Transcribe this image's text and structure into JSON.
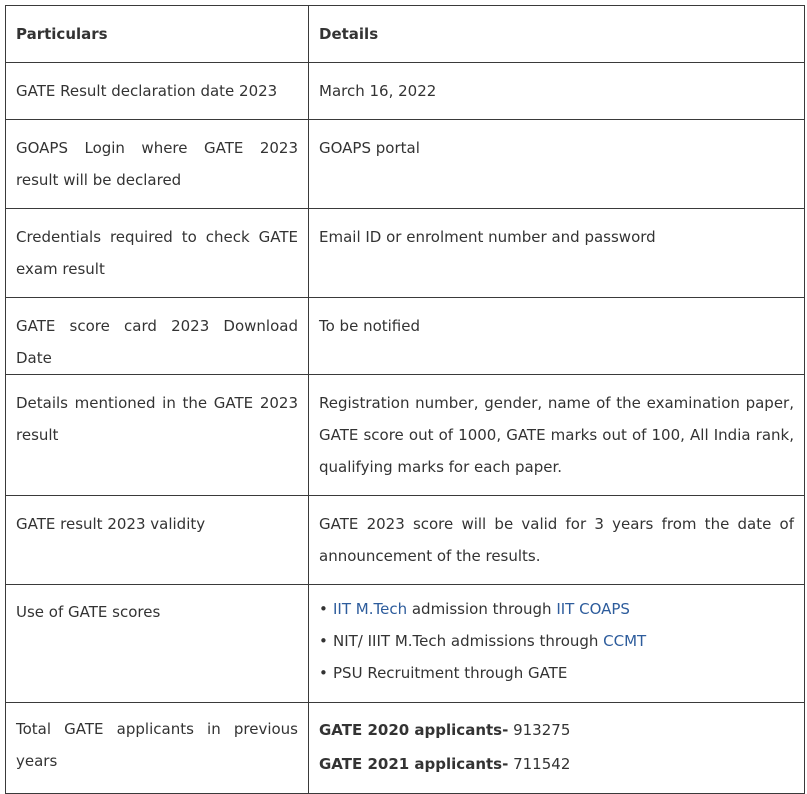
{
  "table": {
    "headers": [
      "Particulars",
      "Details"
    ],
    "rows": [
      {
        "particular": "GATE Result declaration date 2023",
        "detail": "March 16, 2022"
      },
      {
        "particular": "GOAPS Login where GATE 2023 result will be declared",
        "detail": "GOAPS portal"
      },
      {
        "particular": "Credentials required to check GATE exam result",
        "detail": "Email ID or enrolment number and password"
      },
      {
        "particular": "GATE score card 2023 Download Date",
        "detail": "To be notified"
      },
      {
        "particular": "Details mentioned in the GATE 2023 result",
        "detail": "Registration number, gender, name of the examination paper, GATE score out of 1000, GATE marks out of 100, All India rank, qualifying marks for each paper."
      },
      {
        "particular": "GATE result 2023 validity",
        "detail": "GATE 2023 score will be valid for 3 years from the date of announcement of the results."
      },
      {
        "particular": "Use of GATE scores",
        "bullets": [
          {
            "link1": "IIT M.Tech",
            "text": " admission through ",
            "link2": "IIT COAPS"
          },
          {
            "text": "NIT/ IIIT M.Tech admissions through ",
            "link2": "CCMT"
          },
          {
            "text": "PSU Recruitment through GATE"
          }
        ]
      },
      {
        "particular": "Total GATE applicants in previous years",
        "applicants": [
          {
            "label": "GATE 2020 applicants-",
            "value": " 913275"
          },
          {
            "label": "GATE 2021 applicants-",
            "value": " 711542"
          }
        ]
      }
    ]
  },
  "colors": {
    "text": "#333333",
    "link": "#2d5c9c",
    "border": "#3a3a3a"
  }
}
